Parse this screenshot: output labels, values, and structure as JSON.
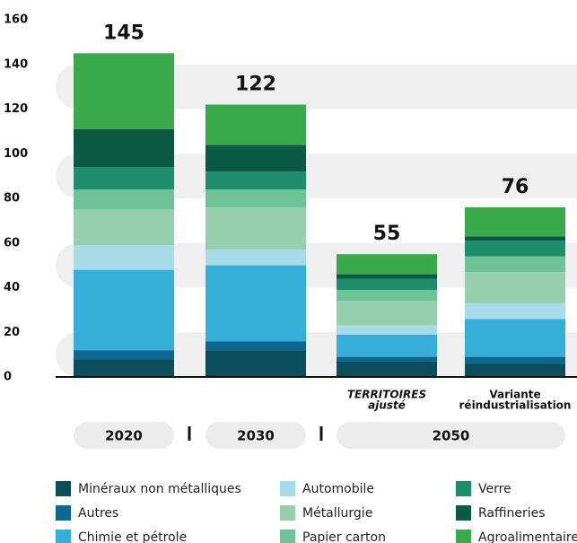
{
  "chart_data": {
    "type": "stacked-bar",
    "categories": [
      null,
      null,
      [
        "TERRITOIRES",
        "ajusté"
      ],
      [
        "Variante",
        "réindustrialisation"
      ]
    ],
    "groups": [
      "2020",
      "2030",
      "2050"
    ],
    "totals": [
      145,
      122,
      55,
      76
    ],
    "series": [
      {
        "name": "Minéraux non métalliques",
        "color": "#0c4d5c",
        "values": [
          8,
          12,
          7,
          6
        ]
      },
      {
        "name": "Autres",
        "color": "#0b6890",
        "values": [
          4,
          4,
          2,
          3
        ]
      },
      {
        "name": "Chimie et pétrole",
        "color": "#37aed9",
        "values": [
          36,
          34,
          10,
          17
        ]
      },
      {
        "name": "Automobile",
        "color": "#a7dbe9",
        "values": [
          11,
          7,
          4,
          7
        ]
      },
      {
        "name": "Métallurgie",
        "color": "#95cfae",
        "values": [
          16,
          19,
          11,
          14
        ]
      },
      {
        "name": "Papier carton",
        "color": "#6fc298",
        "values": [
          9,
          8,
          5,
          7
        ]
      },
      {
        "name": "Verre",
        "color": "#1d8d6a",
        "values": [
          10,
          8,
          5,
          7
        ]
      },
      {
        "name": "Raffineries",
        "color": "#0b5a43",
        "values": [
          17,
          12,
          2,
          2
        ]
      },
      {
        "name": "Agroalimentaire",
        "color": "#3aa94b",
        "values": [
          34,
          18,
          9,
          13
        ]
      }
    ],
    "ylim": [
      0,
      160
    ],
    "yticks": [
      0,
      20,
      40,
      60,
      80,
      100,
      120,
      140,
      160
    ]
  }
}
